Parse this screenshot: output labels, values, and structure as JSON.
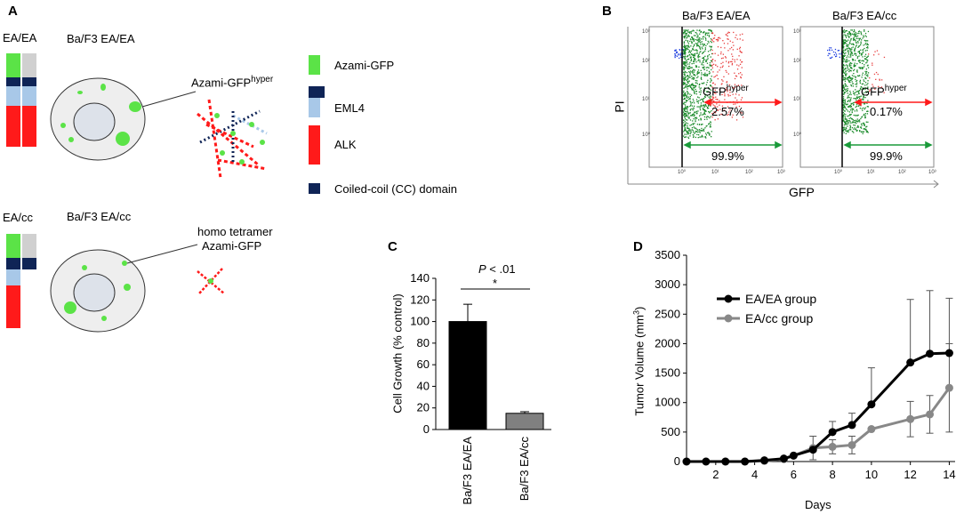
{
  "panel_a": {
    "letter": "A",
    "row1_tag": "EA/EA",
    "row1_cell": "Ba/F3 EA/EA",
    "row1_callout": "Azami-GFP",
    "row1_callout_sup": "hyper",
    "row2_tag": "EA/cc",
    "row2_cell": "Ba/F3 EA/cc",
    "row2_callout_line1": "homo tetramer",
    "row2_callout_line2": "Azami-GFP",
    "legend": [
      {
        "label": "Azami-GFP",
        "color": "#5be347"
      },
      {
        "label": "EML4",
        "color": "#a8c8e8"
      },
      {
        "label": "ALK",
        "color": "#ff1a1a"
      },
      {
        "label": "Coiled-coil (CC) domain",
        "color": "#0f2456"
      }
    ]
  },
  "panel_b": {
    "letter": "B",
    "plots": [
      {
        "title": "Ba/F3 EA/EA",
        "gate_label": "GFP",
        "gate_sup": "hyper",
        "hyper_pct": "2.57%",
        "total_pct": "99.9%"
      },
      {
        "title": "Ba/F3 EA/cc",
        "gate_label": "GFP",
        "gate_sup": "hyper",
        "hyper_pct": "0.17%",
        "total_pct": "99.9%"
      }
    ],
    "ylabel": "PI",
    "xlabel": "GFP",
    "ticks_y": [
      "10³",
      "10²",
      "10¹",
      "10⁰"
    ],
    "ticks_x": [
      "10⁰",
      "10¹",
      "10²",
      "10³"
    ]
  },
  "chart_data": [
    {
      "panel": "C",
      "type": "bar",
      "title": "",
      "categories": [
        "Ba/F3 EA/EA",
        "Ba/F3 EA/cc"
      ],
      "values": [
        100,
        15
      ],
      "errors": [
        16,
        1.5
      ],
      "colors": [
        "#000000",
        "#808080"
      ],
      "ylabel": "Cell Growth (% control)",
      "xlabel": "",
      "ylim": [
        0,
        140
      ],
      "yticks": [
        0,
        20,
        40,
        60,
        80,
        100,
        120,
        140
      ],
      "annotation_p": "P",
      "annotation_rest": " < .01",
      "annotation_star": "*"
    },
    {
      "panel": "D",
      "type": "line",
      "title": "",
      "xlabel": "Days",
      "ylabel": "Tumor Volume (mm³)",
      "ylabel_main": "Tumor Volume (mm",
      "ylabel_sup": "3",
      "ylabel_close": ")",
      "xlim": [
        0.5,
        14.3
      ],
      "ylim": [
        0,
        3500
      ],
      "xticks": [
        2,
        4,
        6,
        8,
        10,
        12,
        14
      ],
      "yticks": [
        0,
        500,
        1000,
        1500,
        2000,
        2500,
        3000,
        3500
      ],
      "series": [
        {
          "name": "EA/EA group",
          "color": "#000000",
          "x": [
            0.5,
            1.5,
            2.5,
            3.5,
            4.5,
            5.5,
            6,
            7,
            8,
            9,
            10,
            12,
            13,
            14
          ],
          "y": [
            0,
            0,
            0,
            0,
            20,
            50,
            100,
            200,
            500,
            620,
            970,
            1680,
            1830,
            1840
          ],
          "err": [
            0,
            0,
            0,
            0,
            0,
            0,
            0,
            0,
            180,
            200,
            620,
            1070,
            1070,
            930
          ]
        },
        {
          "name": "EA/cc group",
          "color": "#888888",
          "x": [
            0.5,
            1.5,
            2.5,
            3.5,
            4.5,
            5.5,
            6,
            7,
            8,
            9,
            10,
            12,
            13,
            14
          ],
          "y": [
            0,
            0,
            0,
            0,
            10,
            40,
            100,
            230,
            250,
            280,
            550,
            720,
            800,
            1250
          ],
          "err": [
            0,
            0,
            0,
            0,
            0,
            0,
            0,
            200,
            120,
            150,
            0,
            300,
            320,
            750
          ]
        }
      ]
    }
  ]
}
